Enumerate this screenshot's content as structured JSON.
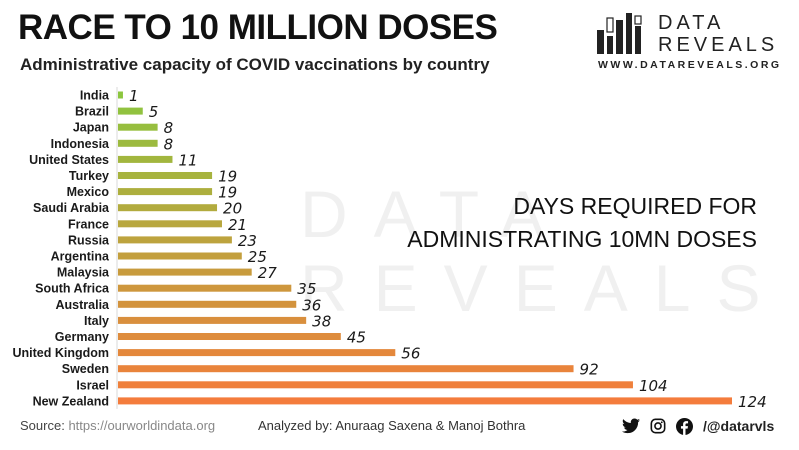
{
  "title": "RACE TO 10 MILLION DOSES",
  "subtitle": "Administrative capacity of COVID vaccinations by country",
  "brand": {
    "line1": "DATA",
    "line2": "REVEALS",
    "url": "WWW.DATAREVEALS.ORG"
  },
  "watermark": {
    "line1": "DATA",
    "line2": "REVEALS"
  },
  "annotation": {
    "line1": "DAYS REQUIRED FOR",
    "line2": "ADMINISTRATING 10MN DOSES"
  },
  "footer": {
    "source_label": "Source:",
    "source_url": "https://ourworldindata.org",
    "analyzed_by": "Analyzed by: Anuraag Saxena & Manoj Bothra",
    "handle": "/@datarvls"
  },
  "colors": {
    "bar_start": "#8cc63f",
    "bar_end": "#f47c3c",
    "axis": "#d8d8d8",
    "watermark": "#f0f0f0"
  },
  "icons": [
    "twitter-icon",
    "instagram-icon",
    "facebook-icon"
  ],
  "chart_data": {
    "type": "bar",
    "orientation": "horizontal",
    "title": "RACE TO 10 MILLION DOSES",
    "xlabel": "Days required for administrating 10mn doses",
    "ylabel": "",
    "categories": [
      "India",
      "Brazil",
      "Japan",
      "Indonesia",
      "United States",
      "Turkey",
      "Mexico",
      "Saudi Arabia",
      "France",
      "Russia",
      "Argentina",
      "Malaysia",
      "South Africa",
      "Australia",
      "Italy",
      "Germany",
      "United Kingdom",
      "Sweden",
      "Israel",
      "New Zealand"
    ],
    "values": [
      1,
      5,
      8,
      8,
      11,
      19,
      19,
      20,
      21,
      23,
      25,
      27,
      35,
      36,
      38,
      45,
      56,
      92,
      104,
      124
    ],
    "xlim": [
      0,
      124
    ],
    "grid": false,
    "legend": "none"
  }
}
